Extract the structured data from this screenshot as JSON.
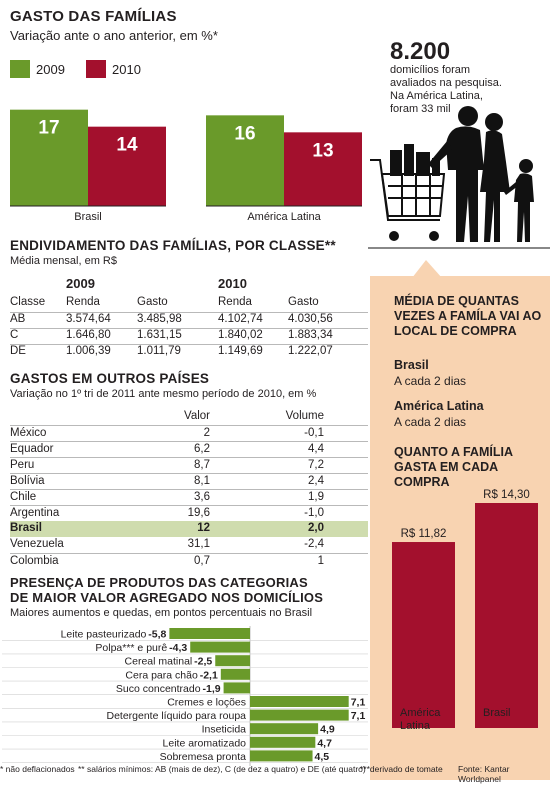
{
  "section1": {
    "title": "GASTO DAS FAMÍLIAS",
    "subtitle": "Variação ante o ano anterior, em %*",
    "legend": [
      {
        "label": "2009",
        "color": "#6a9a2a"
      },
      {
        "label": "2010",
        "color": "#a3102d"
      }
    ]
  },
  "survey": {
    "number": "8.200",
    "line1": "domicílios foram",
    "line2": "avaliados na pesquisa.",
    "line3": "Na América Latina,",
    "line4": "foram 33 mil"
  },
  "section2": {
    "title": "ENDIVIDAMENTO DAS FAMÍLIAS, POR CLASSE**",
    "subtitle": "Média mensal, em  R$",
    "year1": "2009",
    "year2": "2010",
    "headers": [
      "Classe",
      "Renda",
      "Gasto",
      "Renda",
      "Gasto"
    ],
    "rows": [
      [
        "AB",
        "3.574,64",
        "3.485,98",
        "4.102,74",
        "4.030,56"
      ],
      [
        "C",
        "1.646,80",
        "1.631,15",
        "1.840,02",
        "1.883,34"
      ],
      [
        "DE",
        "1.006,39",
        "1.011,79",
        "1.149,69",
        "1.222,07"
      ]
    ]
  },
  "section3": {
    "title": "GASTOS EM OUTROS PAÍSES",
    "subtitle": "Variação no 1º tri de 2011 ante mesmo período de 2010, em %",
    "col1": "Valor",
    "col2": "Volume",
    "rows": [
      [
        "México",
        "2",
        "-0,1"
      ],
      [
        "Equador",
        "6,2",
        "4,4"
      ],
      [
        "Peru",
        "8,7",
        "7,2"
      ],
      [
        "Bolívia",
        "8,1",
        "2,4"
      ],
      [
        "Chile",
        "3,6",
        "1,9"
      ],
      [
        "Argentina",
        "19,6",
        "-1,0"
      ],
      [
        "Brasil",
        "12",
        "2,0"
      ],
      [
        "Venezuela",
        "31,1",
        "-2,4"
      ],
      [
        "Colombia",
        "0,7",
        "1"
      ]
    ],
    "highlight_color": "#cfdcae"
  },
  "section4": {
    "title_line1": "PRESENÇA DE PRODUTOS DAS CATEGORIAS",
    "title_line2": "DE MAIOR VALOR AGREGADO NOS DOMICÍLIOS",
    "subtitle": "Maiores aumentos e quedas, em pontos percentuais no Brasil"
  },
  "panel": {
    "title1_line1": "MÉDIA DE QUANTAS",
    "title1_line2": "VEZES A FAMÍLA VAI AO",
    "title1_line3": "LOCAL DE COMPRA",
    "brasil_label": "Brasil",
    "brasil_value": "A cada 2 dias",
    "al_label": "América Latina",
    "al_value": "A cada 2 dias",
    "title2_line1": "QUANTO A FAMÍLIA",
    "title2_line2": "GASTA EM CADA COMPRA",
    "color": "#f8d3b1"
  },
  "footer": {
    "note1": "* não deflacionados",
    "note2": "** salários mínimos: AB (mais de dez), C (de dez a quatro) e DE (até quatro)",
    "note3": "***derivado de tomate",
    "source": "Fonte: Kantar Worldpanel"
  },
  "chart_data": [
    {
      "type": "bar",
      "title": "GASTO DAS FAMÍLIAS",
      "categories": [
        "Brasil",
        "América Latina"
      ],
      "series": [
        {
          "name": "2009",
          "values": [
            17,
            16
          ],
          "labels": [
            "17",
            "16"
          ]
        },
        {
          "name": "2010",
          "values": [
            14,
            13
          ],
          "labels": [
            "14",
            "13"
          ]
        }
      ],
      "ylim": [
        0,
        18
      ],
      "legend": "top-left"
    },
    {
      "type": "bar",
      "title": "",
      "orientation": "horizontal",
      "categories": [
        "Leite pasteurizado",
        "Polpa*** e purê",
        "Cereal matinal",
        "Cera para chão",
        "Suco concentrado",
        "Cremes e loções",
        "Detergente líquido para roupa",
        "Inseticida",
        "Leite aromatizado",
        "Sobremesa pronta"
      ],
      "values": [
        -5.8,
        -4.3,
        -2.5,
        -2.1,
        -1.9,
        7.1,
        7.1,
        4.9,
        4.7,
        4.5
      ],
      "labels": [
        "-5,8",
        "-4,3",
        "-2,5",
        "-2,1",
        "-1,9",
        "7,1",
        "7,1",
        "4,9",
        "4,7",
        "4,5"
      ]
    },
    {
      "type": "bar",
      "title": "QUANTO A FAMÍLIA GASTA EM CADA COMPRA",
      "categories": [
        "América Latina",
        "Brasil"
      ],
      "values": [
        11.82,
        14.3
      ],
      "labels": [
        "R$ 11,82",
        "R$ 14,30"
      ]
    }
  ]
}
